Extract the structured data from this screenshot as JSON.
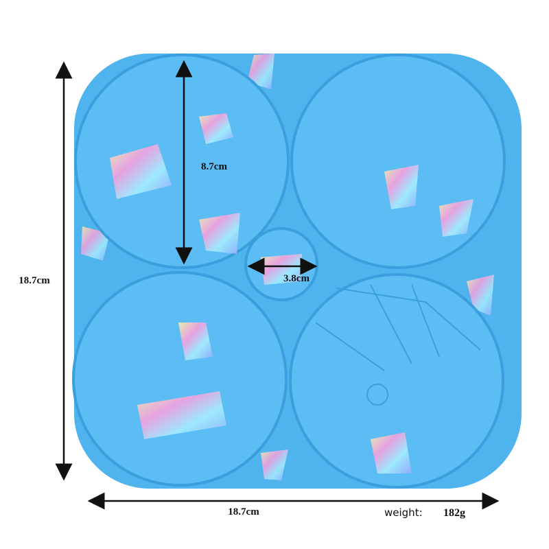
{
  "dimensions": {
    "coaster_diameter": "8.7cm",
    "height": "18.7cm",
    "center_diameter": "3.8cm",
    "width": "18.7cm"
  },
  "weight": {
    "label": "weight:",
    "value": "182g"
  }
}
